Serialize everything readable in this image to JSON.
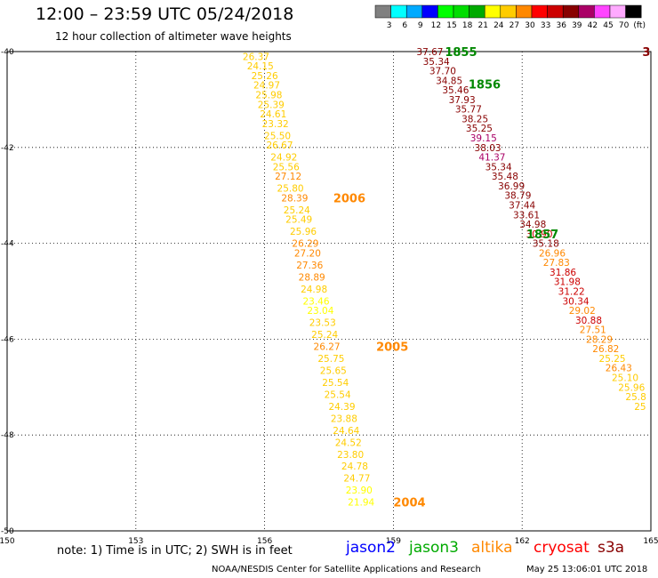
{
  "header": {
    "title": "12:00 – 23:59 UTC 05/24/2018",
    "subtitle": "12 hour collection of altimeter wave heights"
  },
  "colorbar": {
    "colors": [
      "#808080",
      "#00ffff",
      "#00aaff",
      "#0000ff",
      "#00ff00",
      "#00dd00",
      "#00aa00",
      "#ffff00",
      "#ffcc00",
      "#ff8800",
      "#ff0000",
      "#cc0000",
      "#880000",
      "#aa0066",
      "#ff44ff",
      "#ffaaff",
      "#000000"
    ],
    "labels": [
      "3",
      "6",
      "9",
      "12",
      "15",
      "18",
      "21",
      "24",
      "27",
      "30",
      "33",
      "36",
      "39",
      "42",
      "45",
      "70",
      "(ft)"
    ]
  },
  "axes": {
    "lon_labels": [
      "150",
      "153",
      "156",
      "159",
      "162",
      "165"
    ],
    "lat_labels": [
      "-40",
      "-42",
      "-44",
      "-46",
      "-48",
      "-50"
    ],
    "lon_range": [
      150,
      165
    ],
    "lat_range": [
      -40,
      -50
    ]
  },
  "tracks": [
    {
      "label": "1855",
      "label_color": "#008800",
      "points": [
        {
          "lon": 159.85,
          "lat": -40.0,
          "v": "37.67",
          "c": "#880000"
        },
        {
          "lon": 160.0,
          "lat": -40.2,
          "v": "35.34",
          "c": "#880000"
        },
        {
          "lon": 160.15,
          "lat": -40.4,
          "v": "37.70",
          "c": "#880000"
        },
        {
          "lon": 160.3,
          "lat": -40.6,
          "v": "34.85",
          "c": "#880000"
        },
        {
          "lon": 160.45,
          "lat": -40.8,
          "v": "35.46",
          "c": "#880000"
        },
        {
          "lon": 160.6,
          "lat": -41.0,
          "v": "37.93",
          "c": "#880000"
        },
        {
          "lon": 160.75,
          "lat": -41.2,
          "v": "35.77",
          "c": "#880000"
        },
        {
          "lon": 160.9,
          "lat": -41.4,
          "v": "38.25",
          "c": "#880000"
        },
        {
          "lon": 161.0,
          "lat": -41.6,
          "v": "35.25",
          "c": "#880000"
        },
        {
          "lon": 161.1,
          "lat": -41.8,
          "v": "39.15",
          "c": "#aa0066"
        },
        {
          "lon": 161.2,
          "lat": -42.0,
          "v": "38.03",
          "c": "#880000"
        },
        {
          "lon": 161.3,
          "lat": -42.2,
          "v": "41.37",
          "c": "#aa0066"
        }
      ],
      "label_lon": 160.2,
      "label_lat": -40.0
    },
    {
      "label": "1856",
      "label_color": "#008800",
      "points": [
        {
          "lon": 161.45,
          "lat": -42.4,
          "v": "35.34",
          "c": "#880000"
        },
        {
          "lon": 161.6,
          "lat": -42.6,
          "v": "35.48",
          "c": "#880000"
        },
        {
          "lon": 161.75,
          "lat": -42.8,
          "v": "36.99",
          "c": "#880000"
        },
        {
          "lon": 161.9,
          "lat": -43.0,
          "v": "38.79",
          "c": "#880000"
        },
        {
          "lon": 162.0,
          "lat": -43.2,
          "v": "37.44",
          "c": "#880000"
        },
        {
          "lon": 162.1,
          "lat": -43.4,
          "v": "33.61",
          "c": "#880000"
        },
        {
          "lon": 162.25,
          "lat": -43.6,
          "v": "34.98",
          "c": "#880000"
        },
        {
          "lon": 162.4,
          "lat": -43.8,
          "v": "30.90",
          "c": "#cc0000"
        },
        {
          "lon": 162.55,
          "lat": -44.0,
          "v": "35.18",
          "c": "#880000"
        },
        {
          "lon": 162.7,
          "lat": -44.2,
          "v": "26.96",
          "c": "#ff8800"
        },
        {
          "lon": 162.8,
          "lat": -44.4,
          "v": "27.83",
          "c": "#ff8800"
        },
        {
          "lon": 162.95,
          "lat": -44.6,
          "v": "31.86",
          "c": "#cc0000"
        },
        {
          "lon": 163.05,
          "lat": -44.8,
          "v": "31.98",
          "c": "#cc0000"
        },
        {
          "lon": 163.15,
          "lat": -45.0,
          "v": "31.22",
          "c": "#cc0000"
        },
        {
          "lon": 163.25,
          "lat": -45.2,
          "v": "30.34",
          "c": "#cc0000"
        }
      ],
      "label_lon": 160.75,
      "label_lat": -40.68
    },
    {
      "label": "1857",
      "label_color": "#008800",
      "points": [
        {
          "lon": 163.4,
          "lat": -45.4,
          "v": "29.02",
          "c": "#ff8800"
        },
        {
          "lon": 163.55,
          "lat": -45.6,
          "v": "30.88",
          "c": "#cc0000"
        },
        {
          "lon": 163.65,
          "lat": -45.8,
          "v": "27.51",
          "c": "#ff8800"
        },
        {
          "lon": 163.8,
          "lat": -46.0,
          "v": "28.29",
          "c": "#ff8800"
        },
        {
          "lon": 163.95,
          "lat": -46.2,
          "v": "26.82",
          "c": "#ff8800"
        },
        {
          "lon": 164.1,
          "lat": -46.4,
          "v": "25.25",
          "c": "#ffcc00"
        },
        {
          "lon": 164.25,
          "lat": -46.6,
          "v": "26.43",
          "c": "#ff8800"
        },
        {
          "lon": 164.4,
          "lat": -46.8,
          "v": "25.10",
          "c": "#ffcc00"
        },
        {
          "lon": 164.55,
          "lat": -47.0,
          "v": "25.96",
          "c": "#ffcc00"
        },
        {
          "lon": 164.65,
          "lat": -47.2,
          "v": "25.8",
          "c": "#ffcc00"
        },
        {
          "lon": 164.75,
          "lat": -47.4,
          "v": "25",
          "c": "#ffcc00"
        }
      ],
      "label_lon": 162.1,
      "label_lat": -43.8
    },
    {
      "label": "2006",
      "label_color": "#ff8800",
      "points": [
        {
          "lon": 155.8,
          "lat": -40.1,
          "v": "26.37",
          "c": "#ffcc00"
        },
        {
          "lon": 155.9,
          "lat": -40.3,
          "v": "24.15",
          "c": "#ffcc00"
        },
        {
          "lon": 156.0,
          "lat": -40.5,
          "v": "25.26",
          "c": "#ffcc00"
        },
        {
          "lon": 156.05,
          "lat": -40.7,
          "v": "24.97",
          "c": "#ffcc00"
        },
        {
          "lon": 156.1,
          "lat": -40.9,
          "v": "25.98",
          "c": "#ffcc00"
        },
        {
          "lon": 156.15,
          "lat": -41.1,
          "v": "25.39",
          "c": "#ffcc00"
        },
        {
          "lon": 156.2,
          "lat": -41.3,
          "v": "24.61",
          "c": "#ffcc00"
        },
        {
          "lon": 156.25,
          "lat": -41.5,
          "v": "23.32",
          "c": "#ffcc00"
        },
        {
          "lon": 156.3,
          "lat": -41.75,
          "v": "25.50",
          "c": "#ffcc00"
        },
        {
          "lon": 156.35,
          "lat": -41.95,
          "v": "26.67",
          "c": "#ffcc00"
        },
        {
          "lon": 156.45,
          "lat": -42.2,
          "v": "24.92",
          "c": "#ffcc00"
        },
        {
          "lon": 156.5,
          "lat": -42.4,
          "v": "25.56",
          "c": "#ffcc00"
        },
        {
          "lon": 156.55,
          "lat": -42.6,
          "v": "27.12",
          "c": "#ff8800"
        },
        {
          "lon": 156.6,
          "lat": -42.85,
          "v": "25.80",
          "c": "#ffcc00"
        },
        {
          "lon": 156.7,
          "lat": -43.05,
          "v": "28.39",
          "c": "#ff8800"
        },
        {
          "lon": 156.75,
          "lat": -43.3,
          "v": "25.24",
          "c": "#ffcc00"
        },
        {
          "lon": 156.8,
          "lat": -43.5,
          "v": "25.49",
          "c": "#ffcc00"
        },
        {
          "lon": 156.9,
          "lat": -43.75,
          "v": "25.96",
          "c": "#ffcc00"
        },
        {
          "lon": 156.95,
          "lat": -44.0,
          "v": "26.29",
          "c": "#ff8800"
        },
        {
          "lon": 157.0,
          "lat": -44.2,
          "v": "27.20",
          "c": "#ff8800"
        },
        {
          "lon": 157.05,
          "lat": -44.45,
          "v": "27.36",
          "c": "#ff8800"
        },
        {
          "lon": 157.1,
          "lat": -44.7,
          "v": "28.89",
          "c": "#ff8800"
        },
        {
          "lon": 157.15,
          "lat": -44.95,
          "v": "24.98",
          "c": "#ffcc00"
        },
        {
          "lon": 157.2,
          "lat": -45.2,
          "v": "23.46",
          "c": "#ffff00"
        },
        {
          "lon": 157.3,
          "lat": -45.4,
          "v": "23.04",
          "c": "#ffff00"
        }
      ],
      "label_lon": 157.6,
      "label_lat": -43.05
    },
    {
      "label": "2005",
      "label_color": "#ff8800",
      "points": [
        {
          "lon": 157.35,
          "lat": -45.65,
          "v": "23.53",
          "c": "#ffcc00"
        },
        {
          "lon": 157.4,
          "lat": -45.9,
          "v": "25.24",
          "c": "#ffcc00"
        },
        {
          "lon": 157.45,
          "lat": -46.15,
          "v": "26.27",
          "c": "#ff8800"
        },
        {
          "lon": 157.55,
          "lat": -46.4,
          "v": "25.75",
          "c": "#ffcc00"
        },
        {
          "lon": 157.6,
          "lat": -46.65,
          "v": "25.65",
          "c": "#ffcc00"
        },
        {
          "lon": 157.65,
          "lat": -46.9,
          "v": "25.54",
          "c": "#ffcc00"
        },
        {
          "lon": 157.7,
          "lat": -47.15,
          "v": "25.54",
          "c": "#ffcc00"
        },
        {
          "lon": 157.8,
          "lat": -47.4,
          "v": "24.39",
          "c": "#ffcc00"
        },
        {
          "lon": 157.85,
          "lat": -47.65,
          "v": "23.88",
          "c": "#ffcc00"
        },
        {
          "lon": 157.9,
          "lat": -47.9,
          "v": "24.64",
          "c": "#ffcc00"
        },
        {
          "lon": 157.95,
          "lat": -48.15,
          "v": "24.52",
          "c": "#ffcc00"
        },
        {
          "lon": 158.0,
          "lat": -48.4,
          "v": "23.80",
          "c": "#ffcc00"
        },
        {
          "lon": 158.1,
          "lat": -48.65,
          "v": "24.78",
          "c": "#ffcc00"
        },
        {
          "lon": 158.15,
          "lat": -48.9,
          "v": "24.77",
          "c": "#ffcc00"
        },
        {
          "lon": 158.2,
          "lat": -49.15,
          "v": "23.90",
          "c": "#ffff00"
        },
        {
          "lon": 158.25,
          "lat": -49.4,
          "v": "21.94",
          "c": "#ffff00"
        }
      ],
      "label_lon": 158.6,
      "label_lat": -46.15
    }
  ],
  "extra_labels": [
    {
      "text": "2004",
      "lon": 159.0,
      "lat": -49.4,
      "c": "#ff8800"
    },
    {
      "text": "3",
      "lon": 164.8,
      "lat": -40.0,
      "c": "#880000"
    }
  ],
  "note": "note: 1) Time is in UTC; 2) SWH is in feet",
  "legend": [
    {
      "text": "jason2",
      "c": "#0000ff"
    },
    {
      "text": "jason3",
      "c": "#00aa00"
    },
    {
      "text": "altika",
      "c": "#ff8800"
    },
    {
      "text": "cryosat",
      "c": "#ff0000"
    },
    {
      "text": "s3a",
      "c": "#880000"
    }
  ],
  "footer": {
    "source": "NOAA/NESDIS Center for Satellite Applications and Research",
    "timestamp": "May 25 13:06:01 UTC 2018"
  }
}
